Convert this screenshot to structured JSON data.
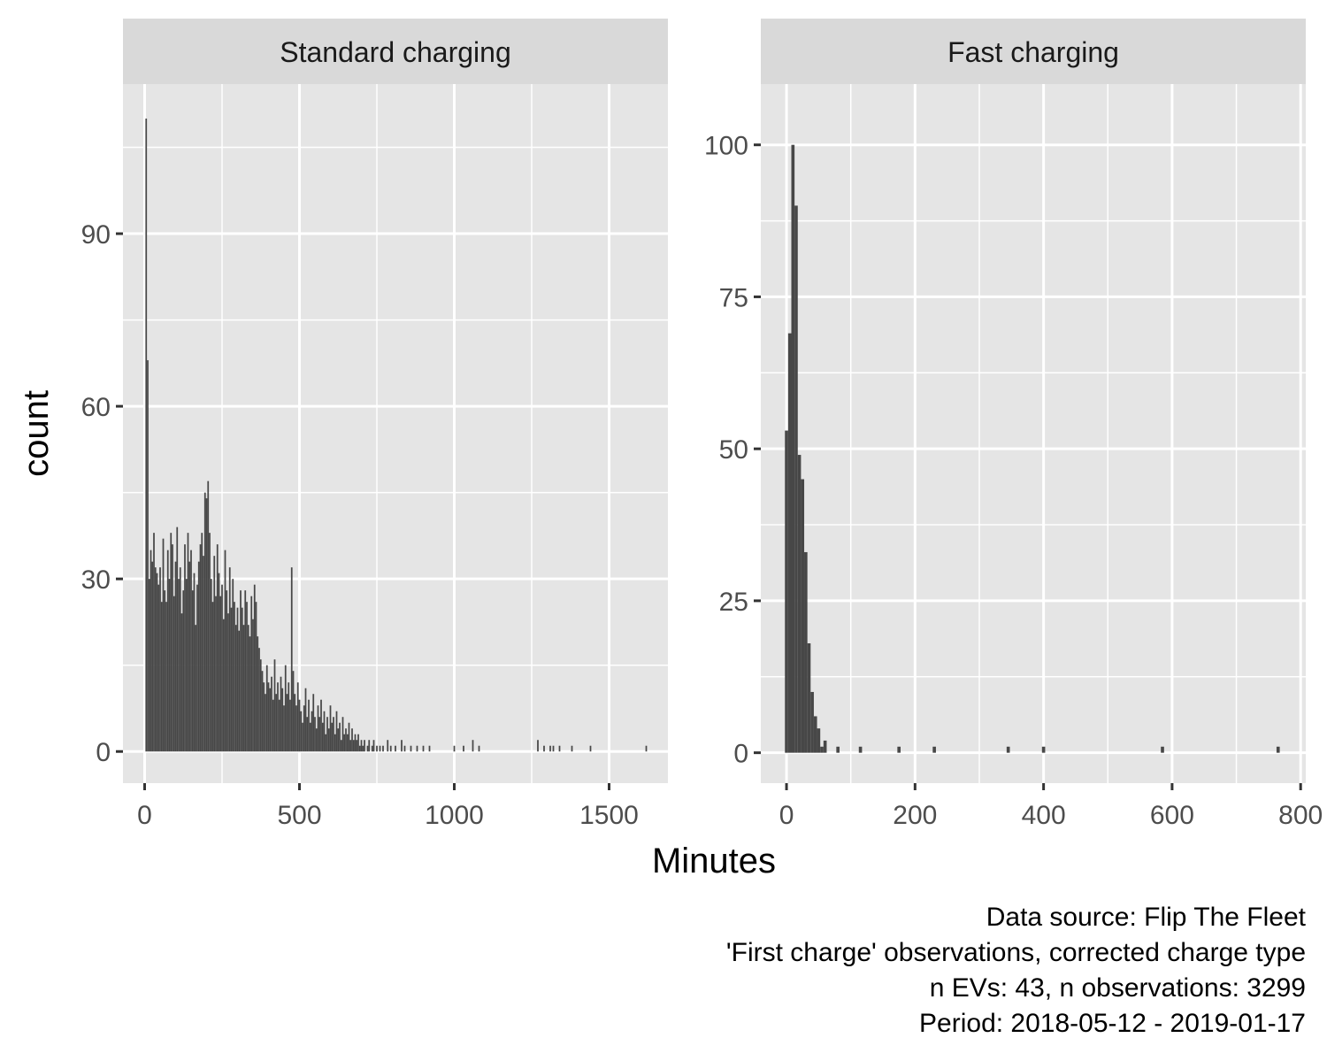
{
  "chart_data": {
    "type": "bar",
    "xlabel": "Minutes",
    "ylabel": "count",
    "caption": [
      "Data source: Flip The Fleet",
      "'First charge' observations, corrected charge type",
      "n EVs: 43, n observations: 3299",
      "Period: 2018-05-12 - 2019-01-17"
    ],
    "panels": [
      {
        "label": "Standard charging",
        "xlim": [
          -70,
          1690
        ],
        "ylim": [
          -5.5,
          116
        ],
        "x_major": [
          0,
          500,
          1000,
          1500
        ],
        "x_minor": [
          250,
          750,
          1250
        ],
        "y_major": [
          0,
          30,
          60,
          90
        ],
        "y_minor": [
          15,
          45,
          75,
          105
        ],
        "bin_width": 5,
        "bars": [
          [
            5,
            110
          ],
          [
            10,
            68
          ],
          [
            15,
            30
          ],
          [
            20,
            35
          ],
          [
            25,
            33
          ],
          [
            30,
            38
          ],
          [
            35,
            32
          ],
          [
            40,
            31
          ],
          [
            45,
            29
          ],
          [
            50,
            32
          ],
          [
            55,
            26
          ],
          [
            60,
            37
          ],
          [
            65,
            28
          ],
          [
            70,
            26
          ],
          [
            75,
            35
          ],
          [
            80,
            30
          ],
          [
            85,
            38
          ],
          [
            90,
            36
          ],
          [
            95,
            27
          ],
          [
            100,
            33
          ],
          [
            105,
            39
          ],
          [
            110,
            30
          ],
          [
            115,
            32
          ],
          [
            120,
            24
          ],
          [
            125,
            28
          ],
          [
            130,
            36
          ],
          [
            135,
            30
          ],
          [
            140,
            38
          ],
          [
            145,
            33
          ],
          [
            150,
            35
          ],
          [
            155,
            28
          ],
          [
            160,
            31
          ],
          [
            165,
            22
          ],
          [
            170,
            29
          ],
          [
            175,
            33
          ],
          [
            180,
            36
          ],
          [
            185,
            38
          ],
          [
            190,
            34
          ],
          [
            195,
            45
          ],
          [
            200,
            44
          ],
          [
            205,
            47
          ],
          [
            210,
            38
          ],
          [
            215,
            30
          ],
          [
            220,
            26
          ],
          [
            225,
            34
          ],
          [
            230,
            27
          ],
          [
            235,
            36
          ],
          [
            240,
            31
          ],
          [
            245,
            27
          ],
          [
            250,
            29
          ],
          [
            255,
            23
          ],
          [
            260,
            35
          ],
          [
            265,
            28
          ],
          [
            270,
            24
          ],
          [
            275,
            32
          ],
          [
            280,
            25
          ],
          [
            285,
            30
          ],
          [
            290,
            26
          ],
          [
            295,
            22
          ],
          [
            300,
            25
          ],
          [
            305,
            21
          ],
          [
            310,
            28
          ],
          [
            315,
            25
          ],
          [
            320,
            22
          ],
          [
            325,
            28
          ],
          [
            330,
            26
          ],
          [
            335,
            22
          ],
          [
            340,
            20
          ],
          [
            345,
            27
          ],
          [
            350,
            23
          ],
          [
            355,
            29
          ],
          [
            360,
            26
          ],
          [
            365,
            20
          ],
          [
            370,
            18
          ],
          [
            375,
            16
          ],
          [
            380,
            14
          ],
          [
            385,
            12
          ],
          [
            390,
            10
          ],
          [
            395,
            15
          ],
          [
            400,
            12
          ],
          [
            405,
            11
          ],
          [
            410,
            13
          ],
          [
            415,
            9
          ],
          [
            420,
            16
          ],
          [
            425,
            10
          ],
          [
            430,
            12
          ],
          [
            435,
            9
          ],
          [
            440,
            13
          ],
          [
            445,
            11
          ],
          [
            450,
            8
          ],
          [
            455,
            15
          ],
          [
            460,
            10
          ],
          [
            465,
            12
          ],
          [
            470,
            9
          ],
          [
            475,
            32
          ],
          [
            480,
            14
          ],
          [
            485,
            10
          ],
          [
            490,
            8
          ],
          [
            495,
            12
          ],
          [
            500,
            9
          ],
          [
            505,
            7
          ],
          [
            510,
            5
          ],
          [
            515,
            8
          ],
          [
            520,
            11
          ],
          [
            525,
            6
          ],
          [
            530,
            9
          ],
          [
            535,
            5
          ],
          [
            540,
            7
          ],
          [
            545,
            10
          ],
          [
            550,
            6
          ],
          [
            555,
            4
          ],
          [
            560,
            8
          ],
          [
            565,
            6
          ],
          [
            570,
            9
          ],
          [
            575,
            5
          ],
          [
            580,
            7
          ],
          [
            585,
            3
          ],
          [
            590,
            6
          ],
          [
            595,
            4
          ],
          [
            600,
            8
          ],
          [
            605,
            5
          ],
          [
            610,
            6
          ],
          [
            615,
            3
          ],
          [
            620,
            7
          ],
          [
            625,
            4
          ],
          [
            630,
            5
          ],
          [
            635,
            2
          ],
          [
            640,
            6
          ],
          [
            645,
            3
          ],
          [
            650,
            4
          ],
          [
            655,
            3
          ],
          [
            660,
            5
          ],
          [
            665,
            2
          ],
          [
            670,
            4
          ],
          [
            675,
            2
          ],
          [
            680,
            3
          ],
          [
            685,
            2
          ],
          [
            690,
            3
          ],
          [
            695,
            1
          ],
          [
            700,
            2
          ],
          [
            705,
            1
          ],
          [
            710,
            2
          ],
          [
            720,
            1
          ],
          [
            725,
            2
          ],
          [
            735,
            1
          ],
          [
            740,
            2
          ],
          [
            750,
            1
          ],
          [
            760,
            1
          ],
          [
            770,
            1
          ],
          [
            785,
            2
          ],
          [
            795,
            1
          ],
          [
            810,
            1
          ],
          [
            830,
            2
          ],
          [
            840,
            1
          ],
          [
            860,
            1
          ],
          [
            880,
            1
          ],
          [
            900,
            1
          ],
          [
            920,
            1
          ],
          [
            1000,
            1
          ],
          [
            1030,
            1
          ],
          [
            1060,
            2
          ],
          [
            1080,
            1
          ],
          [
            1270,
            2
          ],
          [
            1290,
            1
          ],
          [
            1310,
            1
          ],
          [
            1320,
            1
          ],
          [
            1340,
            1
          ],
          [
            1380,
            1
          ],
          [
            1440,
            1
          ],
          [
            1620,
            1
          ]
        ]
      },
      {
        "label": "Fast charging",
        "xlim": [
          -40,
          808
        ],
        "ylim": [
          -5,
          110
        ],
        "x_major": [
          0,
          200,
          400,
          600,
          800
        ],
        "x_minor": [
          100,
          300,
          500,
          700
        ],
        "y_major": [
          0,
          25,
          50,
          75,
          100
        ],
        "y_minor": [
          12.5,
          37.5,
          62.5,
          87.5
        ],
        "bin_width": 5,
        "bars": [
          [
            0,
            53
          ],
          [
            5,
            69
          ],
          [
            10,
            100
          ],
          [
            15,
            90
          ],
          [
            20,
            49
          ],
          [
            25,
            45
          ],
          [
            30,
            33
          ],
          [
            35,
            18
          ],
          [
            40,
            10
          ],
          [
            45,
            6
          ],
          [
            50,
            4
          ],
          [
            55,
            1
          ],
          [
            60,
            2
          ],
          [
            80,
            1
          ],
          [
            115,
            1
          ],
          [
            175,
            1
          ],
          [
            230,
            1
          ],
          [
            345,
            1
          ],
          [
            400,
            1
          ],
          [
            585,
            1
          ],
          [
            765,
            1
          ]
        ]
      }
    ]
  }
}
